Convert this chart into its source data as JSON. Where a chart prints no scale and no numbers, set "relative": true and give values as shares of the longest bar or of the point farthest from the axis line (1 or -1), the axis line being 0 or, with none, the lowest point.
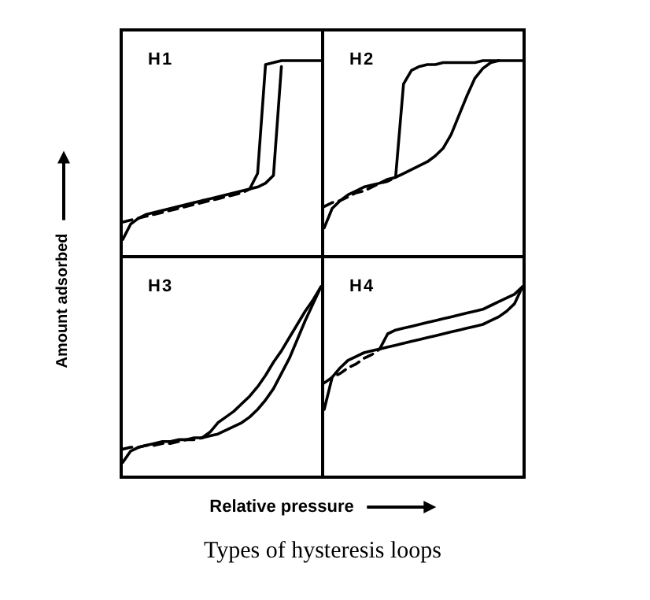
{
  "chart_data": [
    {
      "type": "line",
      "title": "H1",
      "ylabel": "Amount adsorbed",
      "xlabel": "Relative pressure",
      "annotations": [
        "Types of hysteresis loops"
      ],
      "relative": true,
      "marker": "none",
      "categories": [
        null,
        null,
        null,
        null,
        null,
        null,
        null,
        null,
        null,
        null,
        null,
        null,
        null,
        null,
        null,
        null,
        null,
        null,
        null,
        null,
        null,
        null,
        null,
        null,
        null,
        null
      ],
      "series": [
        {
          "color": "#000000",
          "line_style": "solid",
          "values": [
            0.08,
            0.16,
            0.19,
            0.21,
            0.22,
            0.23,
            0.24,
            0.25,
            0.26,
            0.27,
            0.28,
            0.29,
            0.3,
            0.31,
            0.32,
            0.33,
            0.34,
            0.35,
            0.37,
            0.41,
            0.97,
            null,
            null,
            null,
            null,
            null
          ]
        },
        {
          "color": "#000000",
          "line_style": "solid",
          "values": [
            null,
            null,
            null,
            null,
            null,
            null,
            null,
            null,
            null,
            null,
            null,
            null,
            null,
            null,
            null,
            null,
            0.34,
            0.42,
            0.98,
            0.99,
            1.0,
            1.0,
            1.0,
            1.0,
            1.0,
            1.0
          ]
        },
        {
          "color": "#000000",
          "line_style": "dashed",
          "values": [
            0.17,
            0.18,
            0.19,
            0.2,
            0.21,
            0.22,
            0.23,
            0.24,
            0.25,
            0.26,
            0.27,
            0.28,
            0.29,
            0.3,
            0.31,
            0.32,
            0.34,
            null,
            null,
            null,
            null,
            null,
            null,
            null,
            null,
            null
          ]
        }
      ]
    },
    {
      "type": "line",
      "title": "H2",
      "relative": true,
      "marker": "none",
      "categories": [
        null,
        null,
        null,
        null,
        null,
        null,
        null,
        null,
        null,
        null,
        null,
        null,
        null,
        null,
        null,
        null,
        null,
        null,
        null,
        null,
        null,
        null,
        null,
        null,
        null,
        null
      ],
      "series": [
        {
          "color": "#000000",
          "line_style": "solid",
          "values": [
            0.14,
            0.24,
            0.28,
            0.31,
            0.33,
            0.35,
            0.36,
            0.37,
            0.39,
            0.4,
            0.42,
            0.44,
            0.46,
            0.48,
            0.51,
            0.55,
            0.62,
            0.72,
            0.82,
            0.91,
            0.96,
            0.99,
            1.0,
            null,
            null,
            null
          ]
        },
        {
          "color": "#000000",
          "line_style": "solid",
          "values": [
            null,
            null,
            null,
            null,
            null,
            null,
            null,
            null,
            null,
            0.4,
            0.88,
            0.95,
            0.97,
            0.98,
            0.98,
            0.99,
            0.99,
            0.99,
            0.99,
            0.99,
            1.0,
            1.0,
            1.0,
            1.0,
            1.0,
            1.0
          ]
        },
        {
          "color": "#000000",
          "line_style": "dashed",
          "values": [
            0.25,
            0.27,
            0.28,
            0.3,
            0.32,
            0.33,
            0.35,
            0.37,
            0.38,
            0.4,
            null,
            null,
            null,
            null,
            null,
            null,
            null,
            null,
            null,
            null,
            null,
            null,
            null,
            null,
            null,
            null
          ]
        }
      ]
    },
    {
      "type": "line",
      "title": "H3",
      "relative": true,
      "marker": "none",
      "categories": [
        null,
        null,
        null,
        null,
        null,
        null,
        null,
        null,
        null,
        null,
        null,
        null,
        null,
        null,
        null,
        null,
        null,
        null,
        null,
        null,
        null,
        null,
        null,
        null,
        null,
        null
      ],
      "series": [
        {
          "color": "#000000",
          "line_style": "solid",
          "values": [
            0.07,
            0.13,
            0.15,
            0.16,
            0.17,
            0.18,
            0.18,
            0.19,
            0.19,
            0.2,
            0.2,
            0.21,
            0.22,
            0.24,
            0.26,
            0.28,
            0.31,
            0.35,
            0.4,
            0.46,
            0.54,
            0.62,
            0.72,
            0.82,
            0.91,
            1.0
          ]
        },
        {
          "color": "#000000",
          "line_style": "solid",
          "values": [
            null,
            null,
            null,
            null,
            null,
            null,
            null,
            null,
            null,
            null,
            0.2,
            0.23,
            0.28,
            0.31,
            0.34,
            0.38,
            0.42,
            0.47,
            0.53,
            0.6,
            0.66,
            0.73,
            0.8,
            0.87,
            0.93,
            1.0
          ]
        },
        {
          "color": "#000000",
          "line_style": "dashed",
          "values": [
            0.14,
            0.15,
            0.15,
            0.16,
            0.16,
            0.17,
            0.17,
            0.18,
            0.19,
            0.19,
            0.2,
            null,
            null,
            null,
            null,
            null,
            null,
            null,
            null,
            null,
            null,
            null,
            null,
            null,
            null,
            null
          ]
        }
      ]
    },
    {
      "type": "line",
      "title": "H4",
      "relative": true,
      "marker": "none",
      "categories": [
        null,
        null,
        null,
        null,
        null,
        null,
        null,
        null,
        null,
        null,
        null,
        null,
        null,
        null,
        null,
        null,
        null,
        null,
        null,
        null,
        null,
        null,
        null,
        null,
        null,
        null
      ],
      "series": [
        {
          "color": "#000000",
          "line_style": "solid",
          "values": [
            0.35,
            0.52,
            0.57,
            0.61,
            0.63,
            0.65,
            0.66,
            0.67,
            0.68,
            0.69,
            0.7,
            0.71,
            0.72,
            0.73,
            0.74,
            0.75,
            0.76,
            0.77,
            0.78,
            0.79,
            0.8,
            0.82,
            0.84,
            0.87,
            0.91,
            1.0
          ]
        },
        {
          "color": "#000000",
          "line_style": "solid",
          "values": [
            null,
            null,
            null,
            null,
            null,
            null,
            null,
            0.67,
            0.75,
            0.77,
            0.78,
            0.79,
            0.8,
            0.81,
            0.82,
            0.83,
            0.84,
            0.85,
            0.86,
            0.87,
            0.88,
            0.9,
            0.92,
            0.94,
            0.96,
            1.0
          ]
        },
        {
          "color": "#000000",
          "line_style": "dashed",
          "values": [
            0.49,
            0.52,
            0.54,
            0.57,
            0.59,
            0.62,
            0.64,
            0.67,
            null,
            null,
            null,
            null,
            null,
            null,
            null,
            null,
            null,
            null,
            null,
            null,
            null,
            null,
            null,
            null,
            null,
            null
          ]
        }
      ]
    }
  ]
}
